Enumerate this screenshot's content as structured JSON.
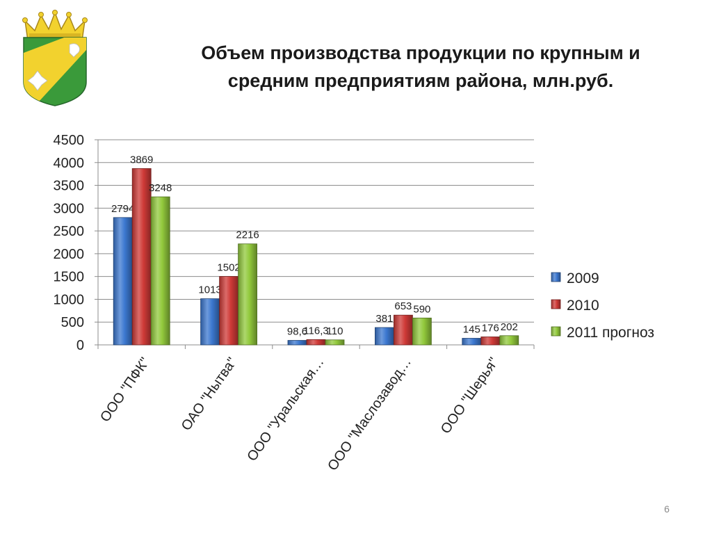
{
  "slide": {
    "title_line1": "Объем производства продукции по крупным и",
    "title_line2": "средним предприятиям района, млн.руб.",
    "page_number": "6",
    "emblem": "district-coat-of-arms-with-crown"
  },
  "chart_data": {
    "type": "bar",
    "title": "",
    "xlabel": "",
    "ylabel": "",
    "ylim": [
      0,
      4500
    ],
    "yticks": [
      "0",
      "500",
      "1000",
      "1500",
      "2000",
      "2500",
      "3000",
      "3500",
      "4000",
      "4500"
    ],
    "grid": true,
    "legend_position": "right",
    "categories": [
      "ООО \"ПФК\"",
      "ОАО \"Нытва\"",
      "ООО \"Уральская…",
      "ООО \"Маслозавод…",
      "ООО \"Шерья\""
    ],
    "series": [
      {
        "name": "2009",
        "color": "#3c78d0",
        "values": [
          2794,
          1013,
          98.6,
          381,
          145
        ],
        "labels": [
          "2794",
          "1013",
          "98,6",
          "381",
          "145"
        ]
      },
      {
        "name": "2010",
        "color": "#cf3a37",
        "values": [
          3869,
          1502,
          116.3,
          653,
          176
        ],
        "labels": [
          "3869",
          "1502",
          "116,3",
          "653",
          "176"
        ]
      },
      {
        "name": "2011 прогноз",
        "color": "#92c93c",
        "values": [
          3248,
          2216,
          110,
          590,
          202
        ],
        "labels": [
          "3248",
          "2216",
          "110",
          "590",
          "202"
        ]
      }
    ]
  }
}
